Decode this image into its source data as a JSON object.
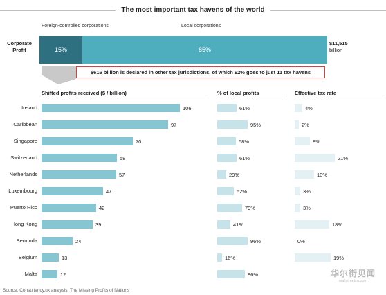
{
  "chart_data": [
    {
      "type": "bar",
      "title": "The most important tax havens of the world",
      "stacked": true,
      "categories": [
        "Corporate Profit"
      ],
      "series": [
        {
          "name": "Foreign-controlled corporations",
          "values": [
            15
          ],
          "label": "15%"
        },
        {
          "name": "Local corporations",
          "values": [
            85
          ],
          "label": "85%"
        }
      ],
      "total_label": "$11,515 billion",
      "total_line1": "$11,515",
      "total_line2": "billion",
      "annotation": "$616 billion is declared in other tax jurisdictions, of which 92% goes to just 11 tax havens",
      "colors": {
        "foreign": "#2e6f80",
        "local": "#4faebe"
      }
    },
    {
      "type": "bar",
      "orientation": "horizontal",
      "xlabel": "Shifted profits received ($ / billion)",
      "categories": [
        "Ireland",
        "Caribbean",
        "Singapore",
        "Switzerland",
        "Netherlands",
        "Luxembourg",
        "Puerto Rico",
        "Hong Kong",
        "Bermuda",
        "Belgium",
        "Malta"
      ],
      "values": [
        106,
        97,
        70,
        58,
        57,
        47,
        42,
        39,
        24,
        13,
        12
      ],
      "xlim": [
        0,
        106
      ],
      "color": "#86c6d2"
    },
    {
      "type": "bar",
      "orientation": "horizontal",
      "xlabel": "% of local profits",
      "categories": [
        "Ireland",
        "Caribbean",
        "Singapore",
        "Switzerland",
        "Netherlands",
        "Luxembourg",
        "Puerto Rico",
        "Hong Kong",
        "Bermuda",
        "Belgium",
        "Malta"
      ],
      "values": [
        61,
        95,
        58,
        61,
        29,
        52,
        79,
        41,
        96,
        16,
        86
      ],
      "labels": [
        "61%",
        "95%",
        "58%",
        "61%",
        "29%",
        "52%",
        "79%",
        "41%",
        "96%",
        "16%",
        "86%"
      ],
      "xlim": [
        0,
        100
      ],
      "color": "#c6e3e9"
    },
    {
      "type": "bar",
      "orientation": "horizontal",
      "xlabel": "Effective tax rate",
      "categories": [
        "Ireland",
        "Caribbean",
        "Singapore",
        "Switzerland",
        "Netherlands",
        "Luxembourg",
        "Puerto Rico",
        "Hong Kong",
        "Bermuda",
        "Belgium",
        "Malta"
      ],
      "values": [
        4,
        2,
        8,
        21,
        10,
        3,
        3,
        18,
        0,
        19,
        null
      ],
      "labels": [
        "4%",
        "2%",
        "8%",
        "21%",
        "10%",
        "3%",
        "3%",
        "18%",
        "0%",
        "19%",
        ""
      ],
      "xlim": [
        0,
        21
      ],
      "color": "#e3f1f4"
    }
  ],
  "source": "Source: Consultancy.uk analysis, The Missing Profits of Nations",
  "watermark": {
    "main": "华尔街见闻",
    "sub": "wallstreetcn.com"
  }
}
